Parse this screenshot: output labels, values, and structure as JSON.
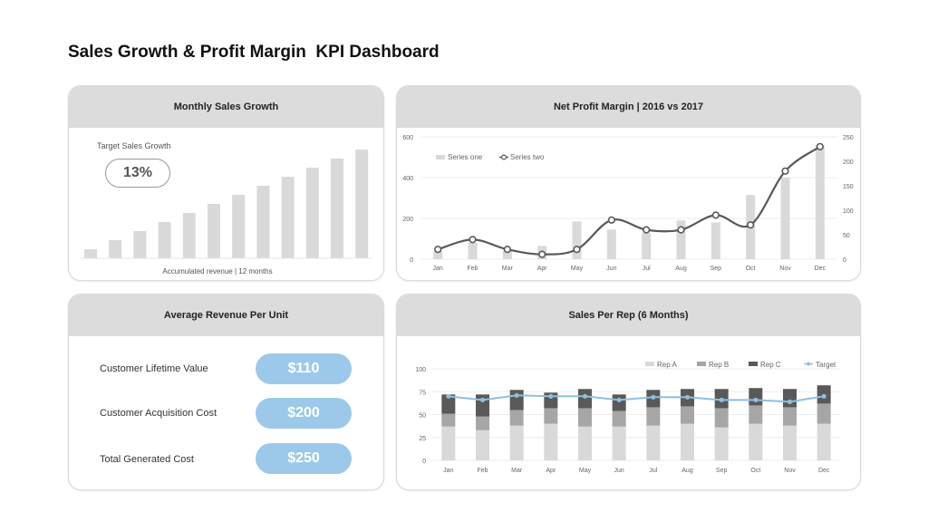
{
  "page_title": "Sales Growth & Profit Margin  KPI Dashboard",
  "colors": {
    "header_bg": "#dcdcdc",
    "bar_light": "#d9d9d9",
    "bar_mid": "#a6a6a6",
    "bar_dark": "#595959",
    "line_dark": "#595959",
    "target_line": "#8fbfe0",
    "pill_blue": "#9cc9ea"
  },
  "monthly_sales": {
    "header": "Monthly Sales Growth",
    "target_label": "Target Sales Growth",
    "target_value": "13%",
    "caption": "Accumulated revenue | 12 months"
  },
  "net_profit": {
    "header": "Net Profit Margin | 2016 vs 2017"
  },
  "avg_revenue": {
    "header": "Average Revenue Per Unit",
    "rows": [
      {
        "label": "Customer Lifetime Value",
        "value": "$110"
      },
      {
        "label": "Customer Acquisition Cost",
        "value": "$200"
      },
      {
        "label": "Total Generated Cost",
        "value": "$250"
      }
    ]
  },
  "sales_per_rep": {
    "header": "Sales Per Rep (6 Months)"
  },
  "chart_data": [
    {
      "type": "bar",
      "values": [
        1,
        2,
        3,
        4,
        5,
        6,
        7,
        8,
        9,
        10,
        11,
        12
      ],
      "ylim": [
        0,
        12
      ],
      "grid": false,
      "legend": "none"
    },
    {
      "type": "bar",
      "categories": [
        "Jan",
        "Feb",
        "Mar",
        "Apr",
        "May",
        "Jun",
        "Jul",
        "Aug",
        "Sep",
        "Oct",
        "Nov",
        "Dec"
      ],
      "series": [
        {
          "name": "Series one",
          "type": "bar",
          "axis": "left",
          "values": [
            40,
            80,
            40,
            65,
            185,
            145,
            130,
            190,
            180,
            315,
            400,
            560
          ]
        },
        {
          "name": "Series two",
          "type": "line",
          "axis": "right",
          "values": [
            20,
            40,
            20,
            10,
            20,
            80,
            60,
            60,
            90,
            70,
            180,
            230
          ]
        }
      ],
      "ylim_left": [
        0,
        600
      ],
      "yticks_left": [
        0,
        200,
        400,
        600
      ],
      "ylim_right": [
        0,
        250
      ],
      "yticks_right": [
        0,
        50,
        100,
        150,
        200,
        250
      ],
      "grid": true,
      "legend": "top-left"
    },
    {
      "type": "bar",
      "stacked": true,
      "categories": [
        "Jan",
        "Feb",
        "Mar",
        "Apr",
        "May",
        "Jun",
        "Jul",
        "Aug",
        "Sep",
        "Oct",
        "Nov",
        "Dec"
      ],
      "series": [
        {
          "name": "Rep A",
          "values": [
            37,
            33,
            38,
            40,
            37,
            37,
            38,
            40,
            36,
            40,
            38,
            40
          ]
        },
        {
          "name": "Rep B",
          "values": [
            14,
            15,
            17,
            17,
            20,
            17,
            20,
            19,
            21,
            20,
            20,
            22
          ]
        },
        {
          "name": "Rep C",
          "values": [
            21,
            24,
            22,
            17,
            21,
            18,
            19,
            19,
            21,
            19,
            20,
            20
          ]
        },
        {
          "name": "Target",
          "type": "line",
          "values": [
            70,
            66,
            71,
            70,
            70,
            66,
            69,
            69,
            66,
            66,
            64,
            70
          ]
        }
      ],
      "ylim": [
        0,
        100
      ],
      "yticks": [
        0,
        25,
        50,
        75,
        100
      ],
      "grid": true,
      "legend": "top-right"
    }
  ]
}
